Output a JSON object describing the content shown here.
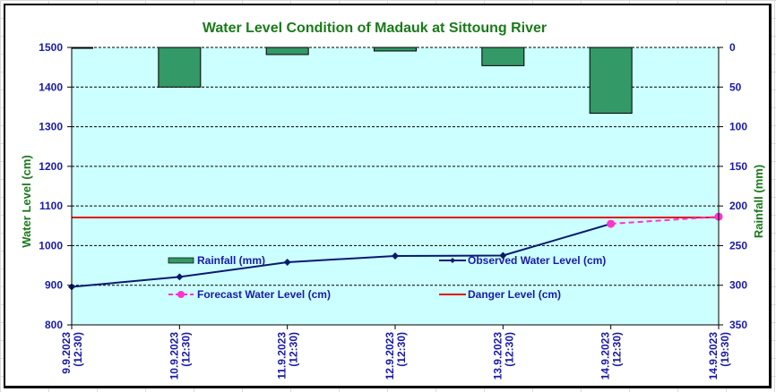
{
  "chart_data": {
    "type": "bar+line",
    "title": "Water Level Condition of Madauk at Sittoung River",
    "ylabel_left": "Water Level (cm)",
    "ylabel_right": "Rainfall (mm)",
    "ylim_left": [
      800,
      1500
    ],
    "ylim_right": [
      350,
      0
    ],
    "yticks_left": [
      1500,
      1400,
      1300,
      1200,
      1100,
      1000,
      900,
      800
    ],
    "yticks_right": [
      0,
      50,
      100,
      150,
      200,
      250,
      300,
      350
    ],
    "grid": true,
    "categories": [
      {
        "date": "9.9.2023",
        "time": "(12:30)"
      },
      {
        "date": "10.9.2023",
        "time": "(12:30)"
      },
      {
        "date": "11.9.2023",
        "time": "(12:30)"
      },
      {
        "date": "12.9.2023",
        "time": "(12:30)"
      },
      {
        "date": "13.9.2023",
        "time": "(12:30)"
      },
      {
        "date": "14.9.2023",
        "time": "(12:30)"
      },
      {
        "date": "14.9.2023",
        "time": "(19:30)"
      }
    ],
    "series": [
      {
        "name": "Rainfall (mm)",
        "type": "bar",
        "axis": "right",
        "color": "#339966",
        "values": [
          1,
          50,
          9,
          4.5,
          23,
          83,
          null
        ]
      },
      {
        "name": "Observed Water Level (cm)",
        "type": "line",
        "axis": "left",
        "color": "#0a1a6e",
        "marker": "diamond",
        "values": [
          896,
          921,
          958,
          974,
          975,
          1055,
          null
        ]
      },
      {
        "name": "Forecast Water Level (cm)",
        "type": "line",
        "axis": "left",
        "color": "#ff33cc",
        "dashed": true,
        "marker": "circle",
        "values": [
          null,
          null,
          null,
          null,
          null,
          1055,
          1073
        ]
      },
      {
        "name": "Danger Level (cm)",
        "type": "hline",
        "axis": "left",
        "color": "#e01010",
        "value": 1071
      }
    ],
    "legend": [
      "Rainfall (mm)",
      "Observed Water Level (cm)",
      "Forecast Water Level (cm)",
      "Danger Level (cm)"
    ],
    "legend_placement": "inside-bottom",
    "plot_background": "#ccffff"
  }
}
